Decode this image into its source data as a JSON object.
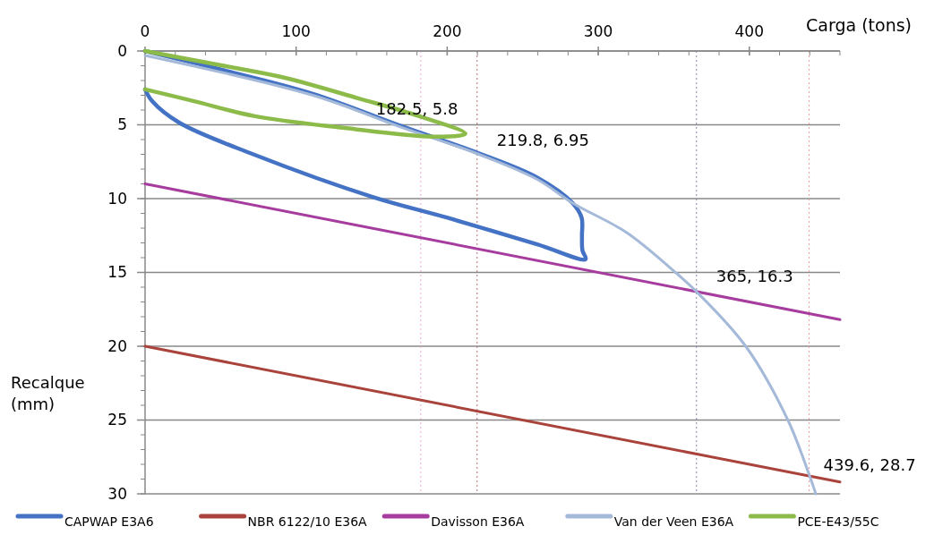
{
  "chart_data": {
    "type": "line",
    "xlabel": "Carga (tons)",
    "ylabel": "Recalque (mm)",
    "xlim": [
      0,
      460
    ],
    "xticks": [
      0,
      100,
      200,
      300,
      400
    ],
    "ylim": [
      30,
      0
    ],
    "yticks": [
      0,
      5,
      10,
      15,
      20,
      25,
      30
    ],
    "grid": "y",
    "legend": "bottom",
    "line_style": "solid",
    "marker": "none",
    "series": [
      {
        "name": "CAPWAP E3A6",
        "color": "#4472c4",
        "x": [
          0,
          52,
          111,
          170,
          220,
          260,
          283,
          289,
          289.2,
          289.5,
          291.6,
          259.6,
          200.3,
          151,
          71.7,
          22.5,
          4.7,
          0
        ],
        "values": [
          0,
          1.3,
          2.9,
          5.1,
          6.9,
          8.6,
          10.3,
          11.3,
          12.5,
          13.5,
          14.1,
          13.1,
          11.3,
          9.9,
          7.0,
          4.85,
          3.4,
          2.6
        ]
      },
      {
        "name": "NBR 6122/10 E36A",
        "color": "#a9433b",
        "x": [
          0,
          460
        ],
        "values": [
          20,
          29.2
        ]
      },
      {
        "name": "Davisson E36A",
        "color": "#a63c9e",
        "x": [
          0,
          460
        ],
        "values": [
          9,
          18.2
        ]
      },
      {
        "name": "Van der Veen E36A",
        "color": "#a5b9d9",
        "x": [
          0,
          111,
          170.7,
          219.8,
          259.6,
          283,
          318.8,
          350,
          365,
          397.6,
          425.5,
          439.6,
          444
        ],
        "values": [
          0.3,
          3.0,
          5.2,
          6.95,
          8.7,
          10.3,
          12.3,
          14.9,
          16.3,
          20,
          25,
          28.7,
          30
        ]
      },
      {
        "name": "PCE-E43/55C",
        "color": "#8cbb4a",
        "x": [
          0,
          52,
          92,
          141,
          181,
          212,
          190,
          131,
          72,
          32.5,
          0
        ],
        "values": [
          0,
          1.0,
          1.8,
          3.2,
          4.4,
          5.6,
          5.8,
          5.2,
          4.4,
          3.4,
          2.6
        ]
      }
    ],
    "ref_lines": [
      {
        "axis": "x",
        "value": 182.5,
        "color": "#e8a6d4",
        "line_style": "dotted"
      },
      {
        "axis": "x",
        "value": 219.8,
        "color": "#b07070",
        "line_style": "dotted"
      },
      {
        "axis": "x",
        "value": 365,
        "color": "#8a84b0",
        "line_style": "dotted"
      },
      {
        "axis": "x",
        "value": 439.6,
        "color": "#e89a9a",
        "line_style": "dotted"
      }
    ],
    "annotations": [
      {
        "text": "182.5, 5.8",
        "x": 182.5,
        "y": 5.8
      },
      {
        "text": "219.8, 6.95",
        "x": 219.8,
        "y": 6.95
      },
      {
        "text": "365, 16.3",
        "x": 365,
        "y": 16.3
      },
      {
        "text": "439.6, 28.7",
        "x": 439.6,
        "y": 28.7
      }
    ]
  }
}
